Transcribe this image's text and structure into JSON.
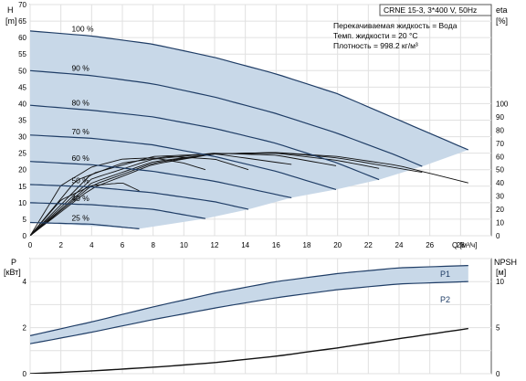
{
  "chart_data": [
    {
      "type": "line",
      "title": "CRNE 15-3, 3*400 V, 50Hz",
      "ylabel_left": "H",
      "ylabel_left_unit": "[m]",
      "ylabel_right": "eta",
      "ylabel_right_unit": "[%]",
      "xlabel": "Q [м³/ч]",
      "xlim": [
        0,
        30
      ],
      "ylim_left": [
        0,
        70
      ],
      "ylim_right_ticks": [
        0,
        10,
        20,
        30,
        40,
        50,
        60,
        70,
        80,
        90,
        100
      ],
      "x_ticks": [
        0,
        2,
        4,
        6,
        8,
        10,
        12,
        14,
        16,
        18,
        20,
        22,
        24,
        26,
        28
      ],
      "y_ticks_left": [
        0,
        5,
        10,
        15,
        20,
        25,
        30,
        35,
        40,
        45,
        50,
        55,
        60,
        65,
        70
      ],
      "grid": true,
      "notes": [
        "Перекачиваемая жидкость = Вода",
        "Темп. жидкости = 20 °C",
        "Плотность = 998.2 кг/м³"
      ],
      "speed_labels": [
        "100 %",
        "90 %",
        "80 %",
        "70 %",
        "60 %",
        "50 %",
        "40 %",
        "25 %"
      ],
      "head_curves": [
        {
          "speed": 100,
          "x": [
            0,
            4,
            8,
            12,
            16,
            20,
            24,
            26,
            28.5
          ],
          "y": [
            62,
            60.5,
            58,
            54,
            49,
            43,
            35,
            31,
            26
          ]
        },
        {
          "speed": 90,
          "x": [
            0,
            4,
            8,
            12,
            16,
            20,
            24,
            25.5
          ],
          "y": [
            50,
            48.5,
            46,
            42,
            37,
            31,
            24,
            21
          ]
        },
        {
          "speed": 80,
          "x": [
            0,
            4,
            8,
            12,
            16,
            20,
            22.7
          ],
          "y": [
            39.5,
            38,
            36,
            32.5,
            28,
            22,
            17
          ]
        },
        {
          "speed": 70,
          "x": [
            0,
            4,
            8,
            12,
            16,
            19.9
          ],
          "y": [
            30.5,
            29.5,
            27.5,
            24,
            19.5,
            14
          ]
        },
        {
          "speed": 60,
          "x": [
            0,
            4,
            8,
            12,
            17
          ],
          "y": [
            22.5,
            21.5,
            19.5,
            16.5,
            11.5
          ]
        },
        {
          "speed": 50,
          "x": [
            0,
            4,
            8,
            12,
            14.2
          ],
          "y": [
            15.5,
            14.8,
            13,
            10.3,
            8
          ]
        },
        {
          "speed": 40,
          "x": [
            0,
            4,
            8,
            11.4
          ],
          "y": [
            10,
            9.4,
            8,
            5.2
          ]
        },
        {
          "speed": 25,
          "x": [
            0,
            4,
            7.1
          ],
          "y": [
            4,
            3.5,
            2.1
          ]
        }
      ],
      "eta_curves": [
        {
          "speed": 100,
          "x": [
            0,
            4,
            8,
            12,
            16,
            20,
            24,
            28.5
          ],
          "y": [
            0,
            36,
            54,
            62,
            63,
            60,
            53,
            40
          ]
        },
        {
          "speed": 90,
          "x": [
            0,
            4,
            8,
            12,
            16,
            20,
            25.5
          ],
          "y": [
            0,
            38,
            55,
            62,
            63,
            59,
            48
          ]
        },
        {
          "speed": 80,
          "x": [
            0,
            4,
            8,
            12,
            16,
            20,
            22.7
          ],
          "y": [
            0,
            40,
            56,
            62,
            62.5,
            57,
            51
          ]
        },
        {
          "speed": 70,
          "x": [
            0,
            4,
            8,
            12,
            16,
            19.9
          ],
          "y": [
            0,
            43,
            58,
            62.5,
            61,
            53
          ]
        },
        {
          "speed": 60,
          "x": [
            0,
            4,
            8,
            12,
            17
          ],
          "y": [
            0,
            47,
            60,
            62,
            54
          ]
        },
        {
          "speed": 50,
          "x": [
            0,
            3,
            6,
            9,
            12,
            14.2
          ],
          "y": [
            0,
            42,
            55,
            60,
            58,
            50
          ]
        },
        {
          "speed": 40,
          "x": [
            0,
            2,
            4,
            6,
            8,
            10,
            11.4
          ],
          "y": [
            0,
            38,
            52,
            58,
            59,
            55,
            50
          ]
        },
        {
          "speed": 25,
          "x": [
            0,
            2,
            4,
            6,
            7.1
          ],
          "y": [
            0,
            27,
            38,
            40,
            34
          ]
        }
      ]
    },
    {
      "type": "line",
      "ylabel_left": "P",
      "ylabel_left_unit": "[кВт]",
      "ylabel_right": "NPSH",
      "ylabel_right_unit": "[м]",
      "xlim": [
        0,
        30
      ],
      "ylim_left": [
        0,
        5
      ],
      "ylim_right": [
        0,
        12.5
      ],
      "y_ticks_left": [
        0,
        2,
        4
      ],
      "y_ticks_right": [
        0,
        5,
        10
      ],
      "grid": true,
      "series_labels": [
        "P1",
        "P2"
      ],
      "power_curves": [
        {
          "name": "P1",
          "x": [
            0,
            4,
            8,
            12,
            16,
            20,
            24,
            28.5
          ],
          "y": [
            1.65,
            2.25,
            2.9,
            3.5,
            4.0,
            4.35,
            4.6,
            4.7
          ]
        },
        {
          "name": "P2",
          "x": [
            0,
            4,
            8,
            12,
            16,
            20,
            24,
            28.5
          ],
          "y": [
            1.3,
            1.8,
            2.35,
            2.85,
            3.3,
            3.65,
            3.9,
            4.0
          ]
        }
      ],
      "npsh_curve": {
        "x": [
          0,
          4,
          8,
          12,
          16,
          20,
          24,
          28.5
        ],
        "y": [
          0,
          0.3,
          0.7,
          1.2,
          1.9,
          2.8,
          3.8,
          4.9
        ]
      }
    }
  ]
}
